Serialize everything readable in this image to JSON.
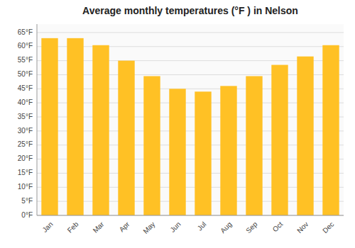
{
  "chart_data": {
    "type": "bar",
    "title": "Average monthly temperatures (°F ) in Nelson",
    "categories": [
      "Jan",
      "Feb",
      "Mar",
      "Apr",
      "May",
      "Jun",
      "Jul",
      "Aug",
      "Sep",
      "Oct",
      "Nov",
      "Dec"
    ],
    "values": [
      63,
      63,
      60.5,
      55,
      49.5,
      45,
      44,
      46,
      49.5,
      53.5,
      56.5,
      60.5
    ],
    "color": "#FFC125",
    "ylim": [
      0,
      68
    ],
    "yticks": [
      {
        "value": 0,
        "label": "0°F"
      },
      {
        "value": 5,
        "label": "5°F"
      },
      {
        "value": 10,
        "label": "10°F"
      },
      {
        "value": 15,
        "label": "15°F"
      },
      {
        "value": 20,
        "label": "20°F"
      },
      {
        "value": 25,
        "label": "25°F"
      },
      {
        "value": 30,
        "label": "30°F"
      },
      {
        "value": 35,
        "label": "35°F"
      },
      {
        "value": 40,
        "label": "40°F"
      },
      {
        "value": 45,
        "label": "45°F"
      },
      {
        "value": 50,
        "label": "50°F"
      },
      {
        "value": 55,
        "label": "55°F"
      },
      {
        "value": 60,
        "label": "60°F"
      },
      {
        "value": 65,
        "label": "65°F"
      }
    ],
    "grid": true
  }
}
